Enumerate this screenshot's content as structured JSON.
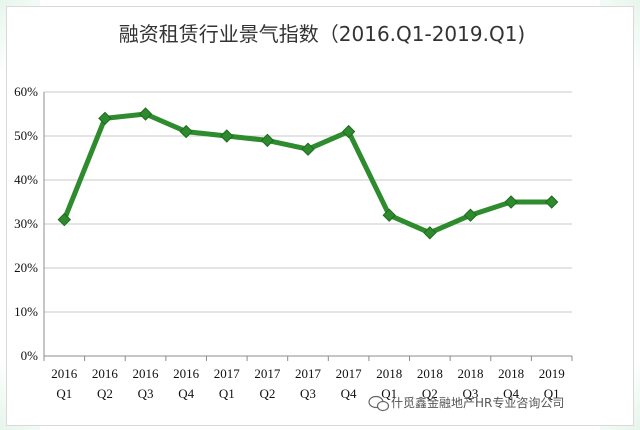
{
  "chart_data": {
    "type": "line",
    "title": "融资租赁行业景气指数（2016.Q1-2019.Q1)",
    "xlabel": "",
    "ylabel": "",
    "categories": [
      [
        "2016",
        "Q1"
      ],
      [
        "2016",
        "Q2"
      ],
      [
        "2016",
        "Q3"
      ],
      [
        "2016",
        "Q4"
      ],
      [
        "2017",
        "Q1"
      ],
      [
        "2017",
        "Q2"
      ],
      [
        "2017",
        "Q3"
      ],
      [
        "2017",
        "Q4"
      ],
      [
        "2018",
        "Q1"
      ],
      [
        "2018",
        "Q2"
      ],
      [
        "2018",
        "Q3"
      ],
      [
        "2018",
        "Q4"
      ],
      [
        "2019",
        "Q1"
      ]
    ],
    "values": [
      31,
      54,
      55,
      51,
      50,
      49,
      47,
      51,
      32,
      28,
      32,
      35,
      35
    ],
    "y_unit": "%",
    "ylim": [
      0,
      60
    ],
    "yticks": [
      0,
      10,
      20,
      30,
      40,
      50,
      60
    ],
    "ytick_labels": [
      "0%",
      "10%",
      "20%",
      "30%",
      "40%",
      "50%",
      "60%"
    ],
    "grid": true,
    "legend": "none",
    "line_color": "#2e8b2e",
    "marker_color": "#2d8a2d",
    "marker_shape": "diamond"
  },
  "watermark": {
    "text": "什觅鑫金融地产HR专业咨询公司",
    "icon": "wechat-icon"
  }
}
